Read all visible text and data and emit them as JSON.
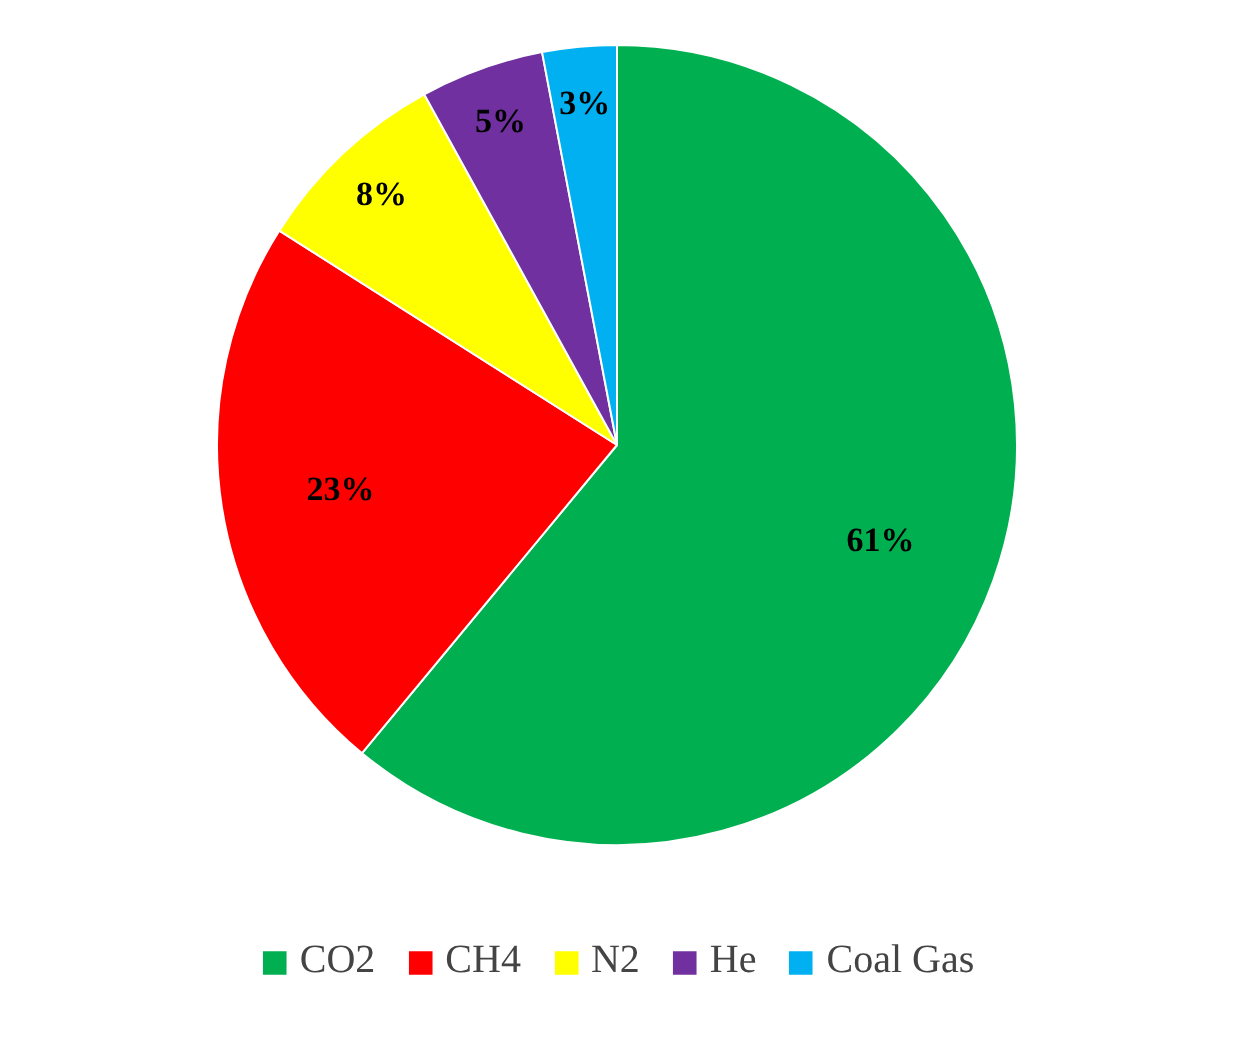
{
  "chart_data": {
    "type": "pie",
    "categories": [
      "CO2",
      "CH4",
      "N2",
      "He",
      "Coal Gas"
    ],
    "values": [
      61,
      23,
      8,
      5,
      3
    ],
    "colors": [
      "#00b050",
      "#ff0000",
      "#ffff00",
      "#7030a0",
      "#00b0f0"
    ],
    "value_labels": [
      "61%",
      "23%",
      "8%",
      "5%",
      "3%"
    ],
    "legend": "bottom"
  }
}
